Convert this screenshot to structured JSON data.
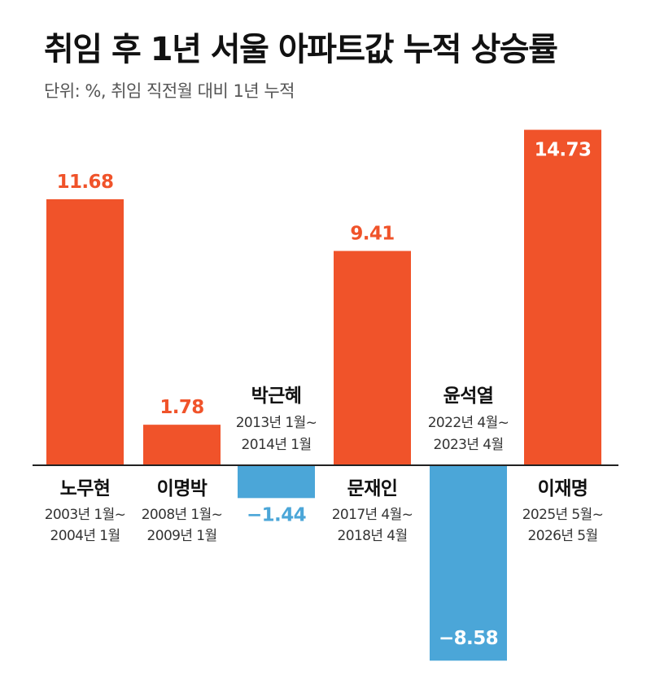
{
  "title": "취임 후 1년 서울 아파트값 누적 상승률",
  "subtitle": "단위: %, 취임 직전월 대비 1년 누적",
  "colors": {
    "positive": "#f0532a",
    "negative": "#4ba6d8",
    "axis": "#222222",
    "text": "#111111",
    "subtext": "#333333"
  },
  "chart_data": {
    "type": "bar",
    "title": "취임 후 1년 서울 아파트값 누적 상승률",
    "unit": "%",
    "ylim": [
      -8.58,
      14.73
    ],
    "categories": [
      "노무현",
      "이명박",
      "박근혜",
      "문재인",
      "윤석열",
      "이재명"
    ],
    "periods": [
      [
        "2003년 1월~",
        "2004년 1월"
      ],
      [
        "2008년 1월~",
        "2009년 1월"
      ],
      [
        "2013년 1월~",
        "2014년 1월"
      ],
      [
        "2017년 4월~",
        "2018년 4월"
      ],
      [
        "2022년 4월~",
        "2023년 4월"
      ],
      [
        "2025년 5월~",
        "2026년 5월"
      ]
    ],
    "values": [
      11.68,
      1.78,
      -1.44,
      9.41,
      -8.58,
      14.73
    ],
    "value_labels": [
      "11.68",
      "1.78",
      "−1.44",
      "9.41",
      "−8.58",
      "14.73"
    ],
    "grid": false,
    "legend": "none"
  }
}
